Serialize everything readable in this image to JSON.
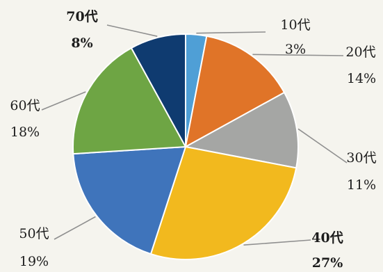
{
  "chart_data": {
    "type": "pie",
    "title": "",
    "categories": [
      "10代",
      "20代",
      "30代",
      "40代",
      "50代",
      "60代",
      "70代"
    ],
    "values": [
      3,
      14,
      11,
      27,
      19,
      18,
      8
    ],
    "value_labels": [
      "3%",
      "14%",
      "11%",
      "27%",
      "19%",
      "18%",
      "8%"
    ],
    "colors": [
      "#4f9fd6",
      "#e07428",
      "#a5a6a4",
      "#f2b91e",
      "#3f74bb",
      "#6ea544",
      "#0f3b70"
    ],
    "start_angle_deg": 0,
    "direction": "clockwise",
    "legend": "none"
  }
}
